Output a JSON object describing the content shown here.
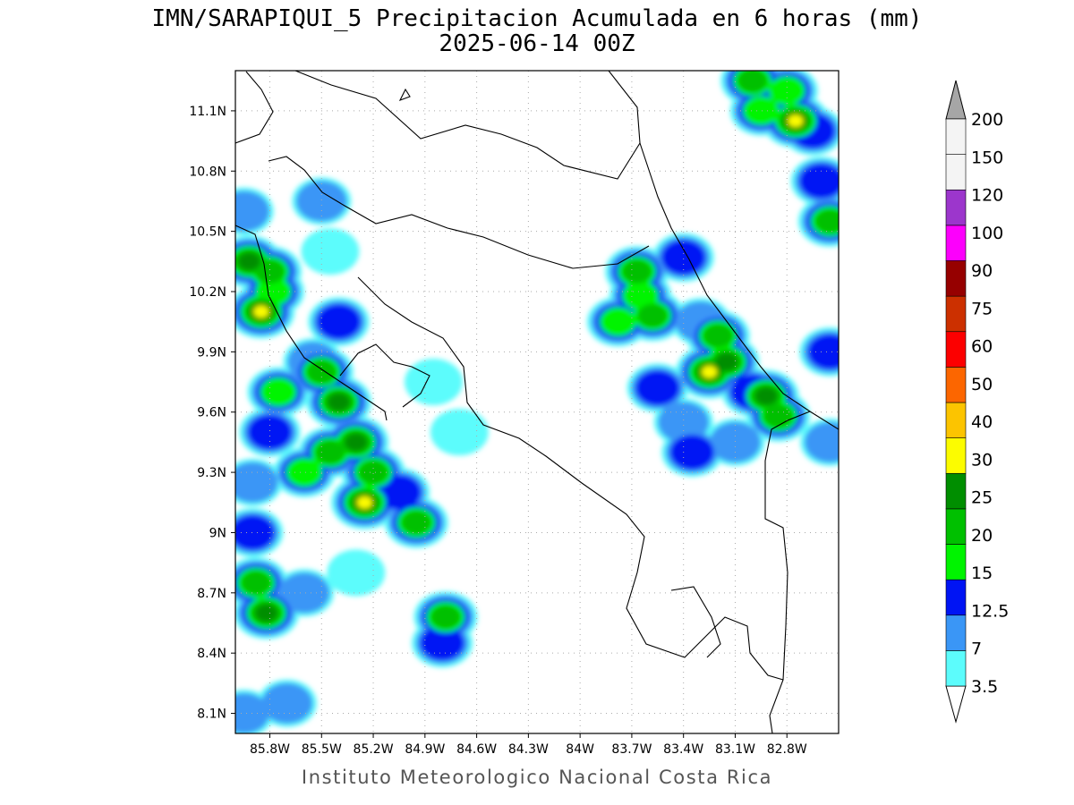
{
  "title": {
    "line1": "IMN/SARAPIQUI_5 Precipitacion Acumulada en 6 horas (mm)",
    "line2": "2025-06-14 00Z"
  },
  "credit": "Instituto Meteorologico Nacional Costa Rica",
  "map": {
    "lon_range": [
      -86.0,
      -82.5
    ],
    "lat_range": [
      8.0,
      11.3
    ],
    "x_ticks": [
      {
        "value": -85.8,
        "label": "85.8W"
      },
      {
        "value": -85.5,
        "label": "85.5W"
      },
      {
        "value": -85.2,
        "label": "85.2W"
      },
      {
        "value": -84.9,
        "label": "84.9W"
      },
      {
        "value": -84.6,
        "label": "84.6W"
      },
      {
        "value": -84.3,
        "label": "84.3W"
      },
      {
        "value": -84.0,
        "label": "84W"
      },
      {
        "value": -83.7,
        "label": "83.7W"
      },
      {
        "value": -83.4,
        "label": "83.4W"
      },
      {
        "value": -83.1,
        "label": "83.1W"
      },
      {
        "value": -82.8,
        "label": "82.8W"
      }
    ],
    "y_ticks": [
      {
        "value": 8.1,
        "label": "8.1N"
      },
      {
        "value": 8.4,
        "label": "8.4N"
      },
      {
        "value": 8.7,
        "label": "8.7N"
      },
      {
        "value": 9.0,
        "label": "9N"
      },
      {
        "value": 9.3,
        "label": "9.3N"
      },
      {
        "value": 9.6,
        "label": "9.6N"
      },
      {
        "value": 9.9,
        "label": "9.9N"
      },
      {
        "value": 10.2,
        "label": "10.2N"
      },
      {
        "value": 10.5,
        "label": "10.5N"
      },
      {
        "value": 10.8,
        "label": "10.8N"
      },
      {
        "value": 11.1,
        "label": "11.1N"
      }
    ],
    "grid": true
  },
  "colorbar": {
    "levels": [
      {
        "label": "3.5",
        "color": "#5cfcfc"
      },
      {
        "label": "7",
        "color": "#3a96f6"
      },
      {
        "label": "12.5",
        "color": "#0014f4"
      },
      {
        "label": "15",
        "color": "#00f400"
      },
      {
        "label": "20",
        "color": "#00c000"
      },
      {
        "label": "25",
        "color": "#008e00"
      },
      {
        "label": "30",
        "color": "#fcfc00"
      },
      {
        "label": "40",
        "color": "#fcc400"
      },
      {
        "label": "50",
        "color": "#fc6600"
      },
      {
        "label": "60",
        "color": "#fc0000"
      },
      {
        "label": "75",
        "color": "#cc3000"
      },
      {
        "label": "90",
        "color": "#960000"
      },
      {
        "label": "100",
        "color": "#fc00fc"
      },
      {
        "label": "120",
        "color": "#9c36cc"
      },
      {
        "label": "150",
        "color": "#f4f4f4"
      },
      {
        "label": "200",
        "color": "#a6a6a6"
      }
    ]
  },
  "precip_cells": [
    {
      "lon": -85.92,
      "lat": 10.35,
      "value": 25
    },
    {
      "lon": -85.85,
      "lat": 10.1,
      "value": 30
    },
    {
      "lon": -85.8,
      "lat": 10.3,
      "value": 20
    },
    {
      "lon": -85.95,
      "lat": 10.6,
      "value": 7
    },
    {
      "lon": -85.78,
      "lat": 10.2,
      "value": 15
    },
    {
      "lon": -85.5,
      "lat": 10.65,
      "value": 7
    },
    {
      "lon": -85.45,
      "lat": 10.4,
      "value": 3.5
    },
    {
      "lon": -85.4,
      "lat": 10.05,
      "value": 12.5
    },
    {
      "lon": -85.55,
      "lat": 9.85,
      "value": 7
    },
    {
      "lon": -85.5,
      "lat": 9.8,
      "value": 20
    },
    {
      "lon": -85.4,
      "lat": 9.65,
      "value": 25
    },
    {
      "lon": -85.3,
      "lat": 9.45,
      "value": 25
    },
    {
      "lon": -85.45,
      "lat": 9.4,
      "value": 20
    },
    {
      "lon": -85.2,
      "lat": 9.3,
      "value": 20
    },
    {
      "lon": -85.6,
      "lat": 9.3,
      "value": 15
    },
    {
      "lon": -85.25,
      "lat": 9.15,
      "value": 30
    },
    {
      "lon": -85.05,
      "lat": 9.2,
      "value": 12.5
    },
    {
      "lon": -84.95,
      "lat": 9.05,
      "value": 20
    },
    {
      "lon": -85.75,
      "lat": 9.7,
      "value": 15
    },
    {
      "lon": -85.8,
      "lat": 9.5,
      "value": 12.5
    },
    {
      "lon": -85.9,
      "lat": 9.25,
      "value": 7
    },
    {
      "lon": -85.9,
      "lat": 9.0,
      "value": 12.5
    },
    {
      "lon": -85.88,
      "lat": 8.75,
      "value": 20
    },
    {
      "lon": -85.82,
      "lat": 8.6,
      "value": 25
    },
    {
      "lon": -85.6,
      "lat": 8.7,
      "value": 7
    },
    {
      "lon": -85.3,
      "lat": 8.8,
      "value": 3.5
    },
    {
      "lon": -84.78,
      "lat": 8.58,
      "value": 20
    },
    {
      "lon": -84.8,
      "lat": 8.45,
      "value": 12.5
    },
    {
      "lon": -85.7,
      "lat": 8.15,
      "value": 7
    },
    {
      "lon": -85.95,
      "lat": 8.1,
      "value": 7
    },
    {
      "lon": -84.7,
      "lat": 9.5,
      "value": 3.5
    },
    {
      "lon": -84.85,
      "lat": 9.75,
      "value": 3.5
    },
    {
      "lon": -83.67,
      "lat": 10.3,
      "value": 20
    },
    {
      "lon": -83.65,
      "lat": 10.18,
      "value": 15
    },
    {
      "lon": -83.58,
      "lat": 10.08,
      "value": 20
    },
    {
      "lon": -83.78,
      "lat": 10.05,
      "value": 15
    },
    {
      "lon": -83.4,
      "lat": 10.37,
      "value": 12.5
    },
    {
      "lon": -83.3,
      "lat": 10.05,
      "value": 7
    },
    {
      "lon": -83.2,
      "lat": 9.98,
      "value": 20
    },
    {
      "lon": -83.15,
      "lat": 9.85,
      "value": 25
    },
    {
      "lon": -83.25,
      "lat": 9.8,
      "value": 30
    },
    {
      "lon": -83.0,
      "lat": 9.7,
      "value": 12.5
    },
    {
      "lon": -82.92,
      "lat": 9.68,
      "value": 25
    },
    {
      "lon": -82.85,
      "lat": 9.58,
      "value": 20
    },
    {
      "lon": -83.55,
      "lat": 9.72,
      "value": 12.5
    },
    {
      "lon": -83.4,
      "lat": 9.55,
      "value": 7
    },
    {
      "lon": -83.35,
      "lat": 9.4,
      "value": 12.5
    },
    {
      "lon": -83.1,
      "lat": 9.45,
      "value": 7
    },
    {
      "lon": -82.75,
      "lat": 11.05,
      "value": 30
    },
    {
      "lon": -82.8,
      "lat": 11.2,
      "value": 15
    },
    {
      "lon": -82.65,
      "lat": 11.0,
      "value": 12.5
    },
    {
      "lon": -82.55,
      "lat": 10.55,
      "value": 20
    },
    {
      "lon": -82.6,
      "lat": 10.75,
      "value": 12.5
    },
    {
      "lon": -82.95,
      "lat": 11.1,
      "value": 15
    },
    {
      "lon": -83.0,
      "lat": 11.25,
      "value": 20
    },
    {
      "lon": -82.55,
      "lat": 9.9,
      "value": 12.5
    },
    {
      "lon": -82.55,
      "lat": 9.45,
      "value": 7
    }
  ]
}
